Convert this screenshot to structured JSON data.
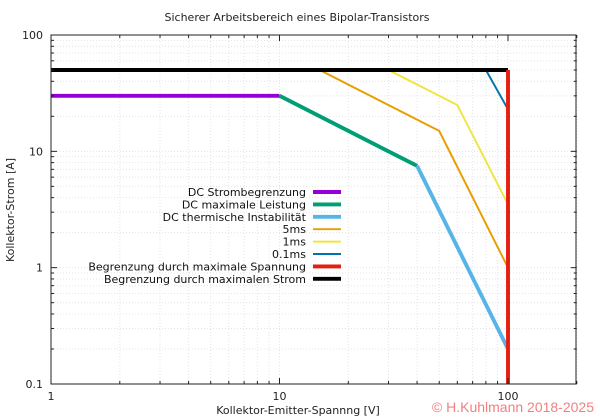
{
  "chart_data": {
    "type": "line",
    "title": "Sicherer Arbeitsbereich eines Bipolar-Transistors",
    "xlabel": "Kollektor-Emitter-Spannng [V]",
    "ylabel": "Kollektor-Strom [A]",
    "xscale": "log",
    "yscale": "log",
    "xlim": [
      1,
      200
    ],
    "ylim": [
      0.1,
      100
    ],
    "xticks": [
      "1",
      "10",
      "100"
    ],
    "yticks": [
      "0.1",
      "1",
      "10",
      "100"
    ],
    "grid": true,
    "legend_position": "center-left",
    "series": [
      {
        "name": "DC Strombegrenzung",
        "color": "#9400d3",
        "width": 3,
        "points": [
          [
            1,
            30
          ],
          [
            10,
            30
          ]
        ]
      },
      {
        "name": "DC maximale Leistung",
        "color": "#009e73",
        "width": 3,
        "points": [
          [
            10,
            30
          ],
          [
            40,
            7.5
          ]
        ]
      },
      {
        "name": "DC thermische Instabilität",
        "color": "#56b4e9",
        "width": 3,
        "points": [
          [
            40,
            7.5
          ],
          [
            100,
            0.2
          ]
        ]
      },
      {
        "name": "5ms",
        "color": "#e69f00",
        "width": 1.5,
        "points": [
          [
            15,
            50
          ],
          [
            50,
            15
          ],
          [
            100,
            1
          ]
        ]
      },
      {
        "name": "1ms",
        "color": "#f0e442",
        "width": 1.5,
        "points": [
          [
            30,
            50
          ],
          [
            60,
            25
          ],
          [
            100,
            3.5
          ]
        ]
      },
      {
        "name": "0.1ms",
        "color": "#0072b2",
        "width": 1.5,
        "points": [
          [
            80,
            50
          ],
          [
            100,
            23
          ]
        ]
      },
      {
        "name": "Begrenzung durch maximale Spannung",
        "color": "#e51e10",
        "width": 3,
        "points": [
          [
            100,
            0.1
          ],
          [
            100,
            50
          ]
        ]
      },
      {
        "name": "Begrenzung durch maximalen Strom",
        "color": "#000000",
        "width": 3,
        "points": [
          [
            1,
            50
          ],
          [
            100,
            50
          ]
        ]
      }
    ]
  },
  "footer": {
    "copyright": "© H.Kuhlmann 2018-2025"
  }
}
